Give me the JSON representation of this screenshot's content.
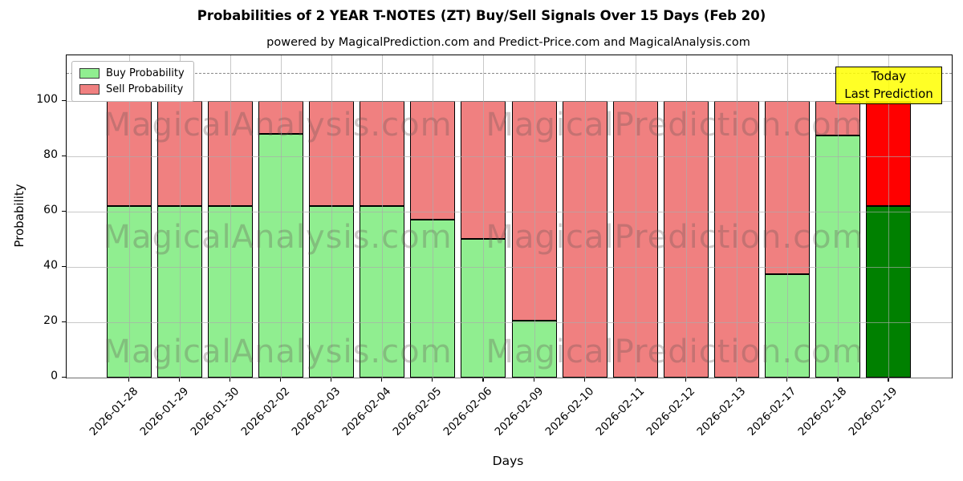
{
  "chart_data": {
    "type": "bar",
    "stacked": true,
    "title": "Probabilities of 2 YEAR T-NOTES (ZT) Buy/Sell Signals Over 15 Days (Feb 20)",
    "subtitle": "powered by MagicalPrediction.com and Predict-Price.com and MagicalAnalysis.com",
    "xlabel": "Days",
    "ylabel": "Probability",
    "categories": [
      "2026-01-28",
      "2026-01-29",
      "2026-01-30",
      "2026-02-02",
      "2026-02-03",
      "2026-02-04",
      "2026-02-05",
      "2026-02-06",
      "2026-02-09",
      "2026-02-10",
      "2026-02-11",
      "2026-02-12",
      "2026-02-13",
      "2026-02-17",
      "2026-02-18",
      "2026-02-19"
    ],
    "series": [
      {
        "name": "Buy Probability",
        "color": "#90ee90",
        "values": [
          62,
          62,
          62,
          88,
          62,
          62,
          57,
          50,
          20.5,
          0,
          0,
          0,
          0,
          37.5,
          87.5,
          62
        ]
      },
      {
        "name": "Sell Probability",
        "color": "#f08080",
        "values": [
          38,
          38,
          38,
          12,
          38,
          38,
          43,
          50,
          79.5,
          100,
          100,
          100,
          100,
          62.5,
          12.5,
          38
        ]
      }
    ],
    "today_index": 15,
    "today_colors": {
      "buy": "#008000",
      "sell": "#ff0000"
    },
    "yticks": [
      0,
      20,
      40,
      60,
      80,
      100
    ],
    "ylim": [
      0,
      116.5
    ],
    "dashed_line_y": 110,
    "grid": true,
    "legend_position": "upper left"
  },
  "legend": {
    "items": [
      {
        "label": "Buy Probability",
        "color": "#90ee90"
      },
      {
        "label": "Sell Probability",
        "color": "#f08080"
      }
    ]
  },
  "annotations": {
    "today_line1": "Today",
    "today_line2": "Last Prediction"
  },
  "watermarks": {
    "left_text": "MagicalAnalysis.com",
    "right_text": "MagicalPrediction.com"
  },
  "colors": {
    "bar_edge": "#000000",
    "grid": "#aaaaaa",
    "dashed_line": "#8a8a8a",
    "today_box_bg": "#ffff00",
    "today_box_border": "#000000"
  }
}
